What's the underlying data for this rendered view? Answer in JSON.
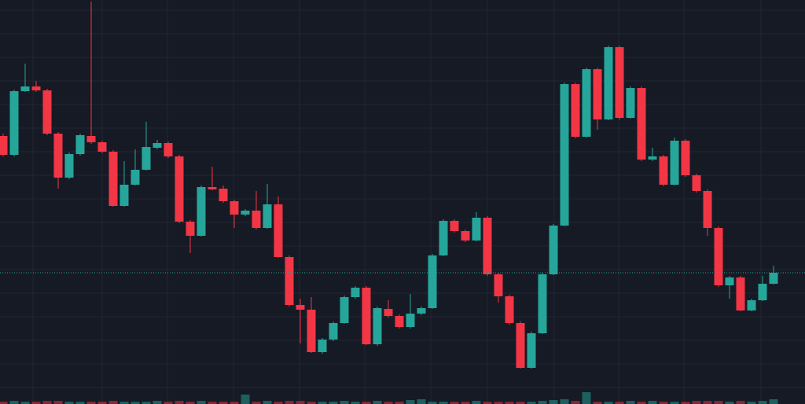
{
  "chart_data": {
    "type": "candlestick",
    "up_color": "#26a69a",
    "down_color": "#f23645",
    "grid": true,
    "ylim": [
      0,
      514
    ],
    "yticks": [
      21,
      51,
      81,
      111,
      141,
      171,
      201,
      231,
      261,
      291,
      321,
      351,
      381,
      411,
      441,
      471,
      501
    ],
    "open": [
      341,
      317,
      398,
      404,
      399,
      344,
      288,
      318,
      341,
      333,
      321,
      252,
      279,
      298,
      326,
      332,
      315,
      232,
      214,
      276,
      274,
      258,
      241,
      246,
      224,
      254,
      187,
      126,
      120,
      66,
      82,
      103,
      136,
      148,
      76,
      121,
      112,
      98,
      115,
      122,
      189,
      233,
      220,
      208,
      237,
      165,
      137,
      103,
      46,
      90,
      165,
      227,
      407,
      340,
      426,
      362,
      454,
      364,
      402,
      311,
      315,
      279,
      335,
      291,
      271,
      224,
      151,
      161,
      119,
      132,
      153
    ],
    "high": [
      344,
      400,
      433,
      411,
      401,
      346,
      320,
      344,
      512,
      335,
      323,
      309,
      324,
      359,
      336,
      334,
      317,
      234,
      278,
      302,
      278,
      260,
      248,
      271,
      280,
      264,
      189,
      134,
      136,
      84,
      105,
      138,
      150,
      150,
      124,
      132,
      114,
      140,
      124,
      191,
      235,
      235,
      222,
      244,
      239,
      167,
      139,
      105,
      92,
      167,
      229,
      409,
      409,
      428,
      428,
      456,
      456,
      404,
      404,
      326,
      317,
      339,
      337,
      293,
      273,
      226,
      163,
      163,
      134,
      163,
      176
    ],
    "low": [
      315,
      315,
      397,
      397,
      342,
      274,
      286,
      316,
      331,
      319,
      251,
      251,
      278,
      297,
      324,
      313,
      230,
      192,
      213,
      272,
      256,
      224,
      239,
      222,
      223,
      186,
      124,
      77,
      65,
      64,
      80,
      102,
      134,
      75,
      74,
      110,
      96,
      96,
      113,
      121,
      188,
      218,
      206,
      207,
      163,
      129,
      101,
      45,
      45,
      89,
      164,
      226,
      338,
      339,
      349,
      361,
      362,
      363,
      309,
      309,
      277,
      278,
      289,
      269,
      214,
      149,
      134,
      118,
      118,
      131,
      152
    ],
    "close": [
      317,
      398,
      404,
      399,
      344,
      288,
      318,
      342,
      333,
      321,
      252,
      279,
      298,
      327,
      332,
      315,
      232,
      214,
      276,
      273,
      258,
      241,
      246,
      224,
      254,
      187,
      126,
      120,
      66,
      82,
      103,
      136,
      148,
      76,
      122,
      112,
      98,
      115,
      122,
      189,
      233,
      220,
      208,
      237,
      165,
      137,
      103,
      46,
      90,
      165,
      227,
      407,
      340,
      426,
      362,
      454,
      364,
      402,
      311,
      315,
      279,
      335,
      291,
      271,
      224,
      151,
      161,
      119,
      132,
      153,
      167
    ],
    "volume_lim": [
      0,
      80
    ],
    "volume": [
      3,
      4,
      3,
      3,
      4,
      4,
      3,
      3,
      3,
      3,
      4,
      3,
      3,
      3,
      4,
      3,
      4,
      3,
      4,
      3,
      3,
      3,
      12,
      3,
      4,
      3,
      4,
      4,
      3,
      3,
      3,
      4,
      3,
      3,
      4,
      3,
      3,
      5,
      6,
      3,
      3,
      3,
      3,
      4,
      3,
      3,
      3,
      3,
      3,
      4,
      5,
      6,
      4,
      15,
      3,
      3,
      3,
      4,
      3,
      4,
      3,
      3,
      3,
      4,
      4,
      4,
      3,
      4,
      3,
      4,
      6
    ]
  }
}
